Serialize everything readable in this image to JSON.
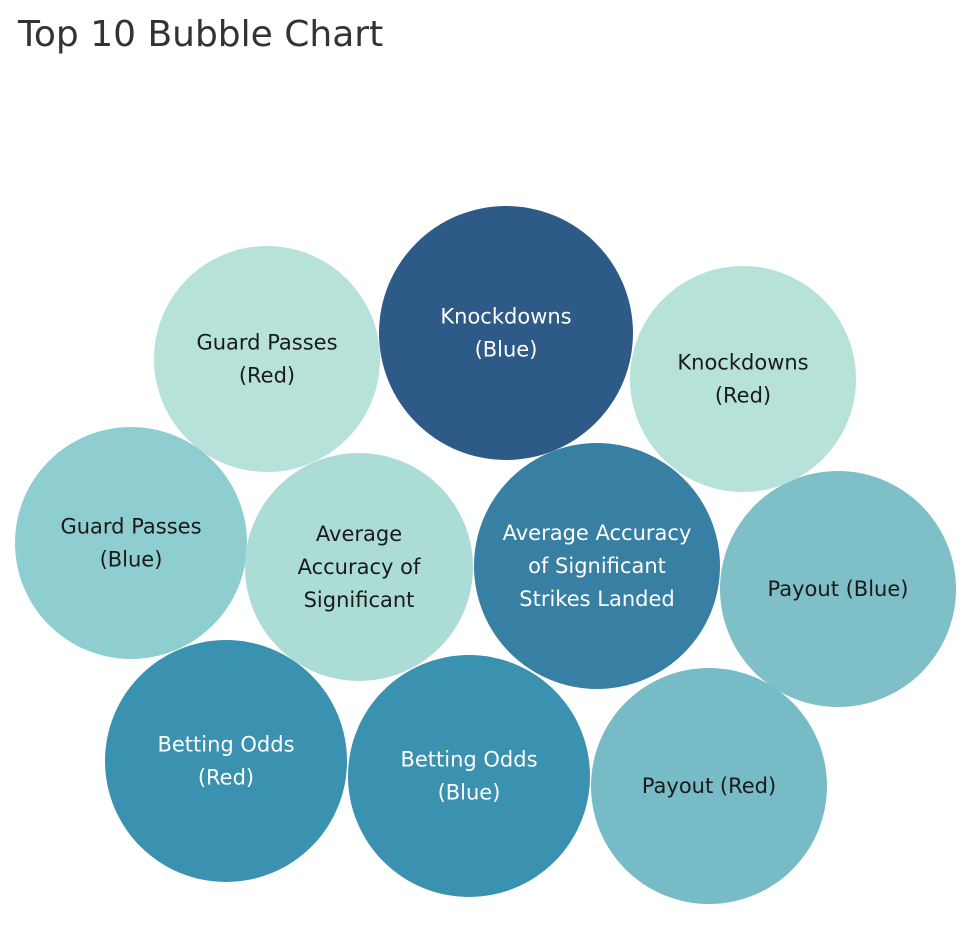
{
  "chart_data": {
    "type": "bubble",
    "title": "Top 10 Bubble Chart",
    "bubbles": [
      {
        "label": [
          "Knockdowns",
          "(Blue)"
        ],
        "rank": 1,
        "color": "#2E5A87",
        "text_color": "#ffffff"
      },
      {
        "label": [
          "Average Accuracy",
          "of Significant",
          "Strikes Landed"
        ],
        "rank": 2,
        "color": "#3780A3",
        "text_color": "#ffffff"
      },
      {
        "label": [
          "Betting Odds",
          "(Red)"
        ],
        "rank": 3,
        "color": "#3A91B0",
        "text_color": "#ffffff"
      },
      {
        "label": [
          "Betting Odds",
          "(Blue)"
        ],
        "rank": 4,
        "color": "#3A91B0",
        "text_color": "#ffffff"
      },
      {
        "label": [
          "Payout (Blue)"
        ],
        "rank": 5,
        "color": "#7FBFC8",
        "text_color": "#1a1a1a"
      },
      {
        "label": [
          "Payout (Red)"
        ],
        "rank": 6,
        "color": "#76BBC6",
        "text_color": "#1a1a1a"
      },
      {
        "label": [
          "Guard Passes",
          "(Blue)"
        ],
        "rank": 7,
        "color": "#8ECDD0",
        "text_color": "#1a1a1a"
      },
      {
        "label": [
          "Average",
          "Accuracy of",
          "Significant"
        ],
        "rank": 8,
        "color": "#ACDCD6",
        "text_color": "#1a1a1a"
      },
      {
        "label": [
          "Guard Passes",
          "(Red)"
        ],
        "rank": 9,
        "color": "#B6E2D9",
        "text_color": "#1a1a1a"
      },
      {
        "label": [
          "Knockdowns",
          "(Red)"
        ],
        "rank": 10,
        "color": "#B6E2D9",
        "text_color": "#1a1a1a"
      }
    ]
  }
}
